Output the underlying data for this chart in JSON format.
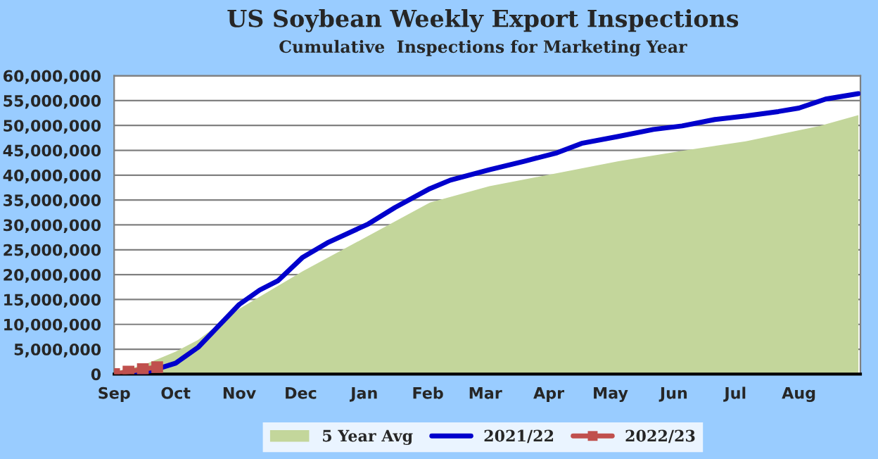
{
  "chart_data": {
    "type": "line",
    "title": "US Soybean Weekly Export Inspections",
    "subtitle": "Cumulative  Inspections for Marketing Year",
    "xlim": [
      "2021-09-01",
      "2022-08-31"
    ],
    "xticks": [
      {
        "value": "2021-09-01",
        "label": "Sep"
      },
      {
        "value": "2021-10-01",
        "label": "Oct"
      },
      {
        "value": "2021-11-01",
        "label": "Nov"
      },
      {
        "value": "2021-12-01",
        "label": "Dec"
      },
      {
        "value": "2022-01-01",
        "label": "Jan"
      },
      {
        "value": "2022-02-01",
        "label": "Feb"
      },
      {
        "value": "2022-03-01",
        "label": "Mar"
      },
      {
        "value": "2022-04-01",
        "label": "Apr"
      },
      {
        "value": "2022-05-01",
        "label": "May"
      },
      {
        "value": "2022-06-01",
        "label": "Jun"
      },
      {
        "value": "2022-07-01",
        "label": "Jul"
      },
      {
        "value": "2022-08-01",
        "label": "Aug"
      }
    ],
    "ylim": [
      0,
      60000000
    ],
    "yticks": [
      {
        "value": 0,
        "label": "0"
      },
      {
        "value": 5000000,
        "label": "5,000,000"
      },
      {
        "value": 10000000,
        "label": "10,000,000"
      },
      {
        "value": 15000000,
        "label": "15,000,000"
      },
      {
        "value": 20000000,
        "label": "20,000,000"
      },
      {
        "value": 25000000,
        "label": "25,000,000"
      },
      {
        "value": 30000000,
        "label": "30,000,000"
      },
      {
        "value": 35000000,
        "label": "35,000,000"
      },
      {
        "value": 40000000,
        "label": "40,000,000"
      },
      {
        "value": 45000000,
        "label": "45,000,000"
      },
      {
        "value": 50000000,
        "label": "50,000,000"
      },
      {
        "value": 55000000,
        "label": "55,000,000"
      },
      {
        "value": 60000000,
        "label": "60,000,000"
      }
    ],
    "grid": "y",
    "legend": "bottom",
    "series": [
      {
        "name": "5 Year Avg",
        "type": "area",
        "color": "#c3d69b",
        "x": [
          "2021-09-01",
          "2021-09-14",
          "2021-10-01",
          "2021-10-12",
          "2021-11-01",
          "2021-12-02",
          "2022-01-03",
          "2022-02-02",
          "2022-03-03",
          "2022-04-05",
          "2022-05-05",
          "2022-06-05",
          "2022-07-06",
          "2022-08-11",
          "2022-08-30"
        ],
        "values": [
          500000,
          1600000,
          4500000,
          6900000,
          13100000,
          20700000,
          27800000,
          34500000,
          37800000,
          40400000,
          42800000,
          44900000,
          46800000,
          49900000,
          52100000
        ]
      },
      {
        "name": "2021/22",
        "color": "#0000cc",
        "marker": "none",
        "x": [
          "2021-09-12",
          "2021-09-21",
          "2021-10-01",
          "2021-10-12",
          "2021-10-22",
          "2021-11-01",
          "2021-11-11",
          "2021-11-20",
          "2021-12-02",
          "2021-12-14",
          "2022-01-03",
          "2022-01-16",
          "2022-02-02",
          "2022-02-12",
          "2022-03-03",
          "2022-03-20",
          "2022-04-05",
          "2022-04-17",
          "2022-05-05",
          "2022-05-22",
          "2022-06-05",
          "2022-06-21",
          "2022-07-06",
          "2022-07-22",
          "2022-08-01",
          "2022-08-14",
          "2022-08-30"
        ],
        "values": [
          0,
          900000,
          2200000,
          5400000,
          9700000,
          14000000,
          16900000,
          18800000,
          23500000,
          26400000,
          30200000,
          33500000,
          37300000,
          39000000,
          41100000,
          42800000,
          44500000,
          46400000,
          47800000,
          49200000,
          49900000,
          51200000,
          51900000,
          52800000,
          53500000,
          55300000,
          56400000
        ]
      },
      {
        "name": "2022/23",
        "color": "#c0504d",
        "marker": "square",
        "x": [
          "2021-09-01",
          "2021-09-08",
          "2021-09-15",
          "2021-09-22"
        ],
        "values": [
          0,
          500000,
          1000000,
          1400000
        ]
      }
    ]
  }
}
